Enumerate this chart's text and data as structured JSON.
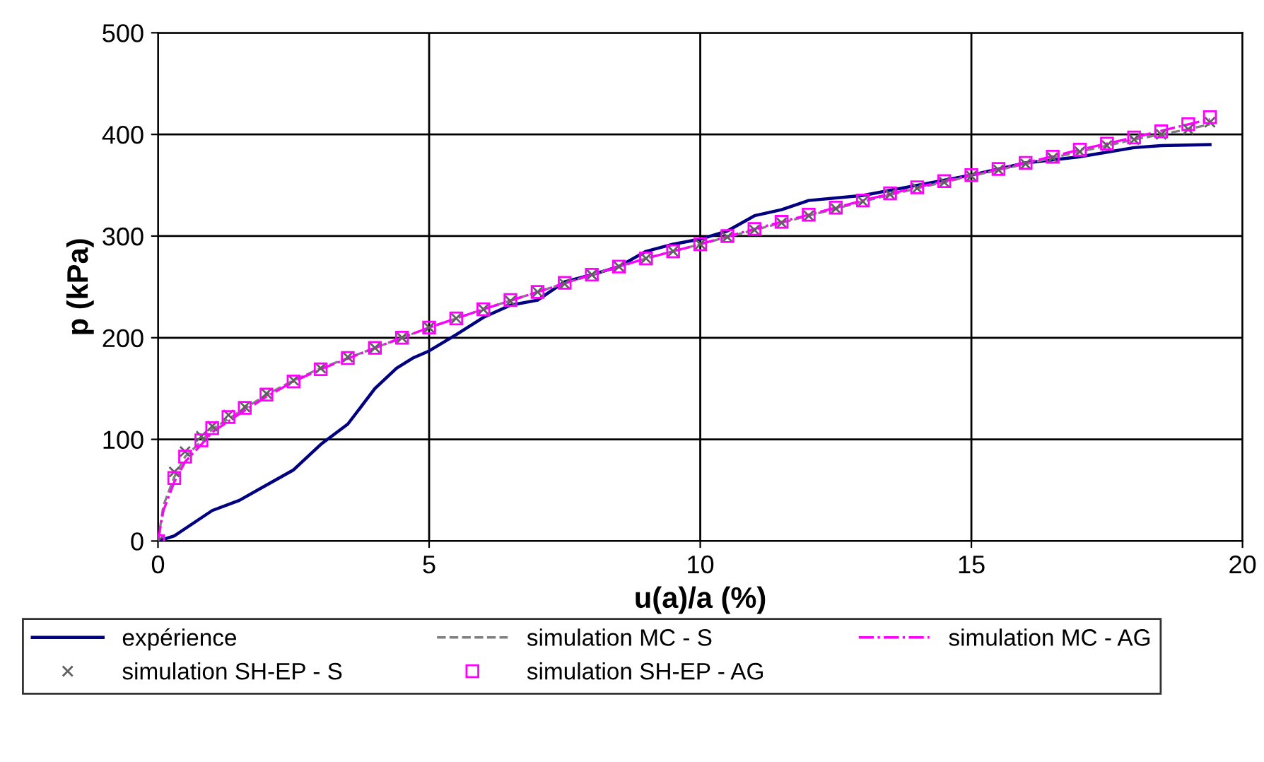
{
  "chart_data": {
    "type": "line",
    "xlabel": "u(a)/a (%)",
    "ylabel": "p (kPa)",
    "xlim": [
      0,
      20
    ],
    "xticks": [
      0,
      5,
      10,
      15,
      20
    ],
    "ylim": [
      0,
      500
    ],
    "yticks": [
      0,
      100,
      200,
      300,
      400,
      500
    ],
    "grid": true,
    "legend": "bottom",
    "series": [
      {
        "name": "expérience",
        "color": "#000080",
        "line_style": "solid",
        "marker": "none",
        "x": [
          0,
          0.3,
          1,
          1.5,
          2,
          2.5,
          3,
          3.5,
          4,
          4.4,
          4.7,
          5,
          5.5,
          6,
          6.5,
          7,
          7.5,
          8,
          8.5,
          9,
          9.5,
          10,
          10.5,
          11,
          11.5,
          12,
          13,
          14,
          15,
          16,
          17,
          18,
          18.5,
          19.4
        ],
        "values": [
          0,
          5,
          30,
          40,
          55,
          70,
          95,
          115,
          150,
          170,
          180,
          187,
          203,
          220,
          232,
          237,
          255,
          262,
          270,
          285,
          292,
          297,
          305,
          320,
          326,
          335,
          340,
          350,
          360,
          372,
          378,
          387,
          389,
          390
        ]
      },
      {
        "name": "simulation MC - S",
        "color": "#808080",
        "line_style": "dashed",
        "marker": "none",
        "x": [
          0,
          0.1,
          0.3,
          0.5,
          0.8,
          1,
          1.5,
          2,
          2.5,
          3,
          4,
          5,
          6,
          7,
          8,
          9,
          10,
          11,
          12,
          13,
          14,
          15,
          16,
          17,
          18,
          19,
          19.4
        ],
        "values": [
          0,
          35,
          63,
          83,
          98,
          110,
          127,
          144,
          158,
          170,
          190,
          210,
          228,
          245,
          262,
          278,
          292,
          306,
          320,
          334,
          347,
          359,
          371,
          383,
          395,
          405,
          410
        ]
      },
      {
        "name": "simulation MC - AG",
        "color": "#ff00ff",
        "line_style": "dashdot",
        "marker": "none",
        "x": [
          0,
          0.1,
          0.3,
          0.5,
          0.8,
          1,
          1.5,
          2,
          2.5,
          3,
          4,
          5,
          6,
          7,
          8,
          9,
          10,
          11,
          12,
          13,
          14,
          15,
          16,
          17,
          18,
          19,
          19.4
        ],
        "values": [
          0,
          30,
          58,
          78,
          95,
          107,
          125,
          142,
          157,
          169,
          190,
          210,
          228,
          245,
          262,
          278,
          292,
          307,
          321,
          335,
          348,
          360,
          372,
          385,
          397,
          410,
          415
        ]
      },
      {
        "name": "simulation SH-EP - S",
        "color": "#606060",
        "type": "scatter",
        "marker": "cross",
        "x": [
          0,
          0.3,
          0.5,
          0.8,
          1,
          1.3,
          1.6,
          2,
          2.5,
          3,
          3.5,
          4,
          4.5,
          5,
          5.5,
          6,
          6.5,
          7,
          7.5,
          8,
          8.5,
          9,
          9.5,
          10,
          10.5,
          11,
          11.5,
          12,
          12.5,
          13,
          13.5,
          14,
          14.5,
          15,
          15.5,
          16,
          16.5,
          17,
          17.5,
          18,
          18.5,
          19,
          19.4
        ],
        "values": [
          0,
          68,
          88,
          103,
          113,
          124,
          132,
          145,
          158,
          170,
          181,
          190,
          200,
          210,
          219,
          228,
          236,
          245,
          253,
          262,
          270,
          278,
          285,
          292,
          299,
          306,
          313,
          320,
          327,
          334,
          341,
          347,
          353,
          359,
          365,
          371,
          377,
          383,
          389,
          395,
          400,
          405,
          412
        ]
      },
      {
        "name": "simulation SH-EP - AG",
        "color": "#ff00ff",
        "type": "scatter",
        "marker": "square",
        "x": [
          0,
          0.3,
          0.5,
          0.8,
          1,
          1.3,
          1.6,
          2,
          2.5,
          3,
          3.5,
          4,
          4.5,
          5,
          5.5,
          6,
          6.5,
          7,
          7.5,
          8,
          8.5,
          9,
          9.5,
          10,
          10.5,
          11,
          11.5,
          12,
          12.5,
          13,
          13.5,
          14,
          14.5,
          15,
          15.5,
          16,
          16.5,
          17,
          17.5,
          18,
          18.5,
          19,
          19.4
        ],
        "values": [
          0,
          62,
          83,
          99,
          111,
          122,
          131,
          144,
          157,
          169,
          180,
          190,
          200,
          210,
          219,
          228,
          237,
          245,
          254,
          262,
          270,
          278,
          285,
          292,
          300,
          307,
          314,
          321,
          328,
          335,
          342,
          348,
          354,
          360,
          366,
          372,
          378,
          385,
          391,
          397,
          403,
          410,
          417
        ]
      }
    ]
  }
}
